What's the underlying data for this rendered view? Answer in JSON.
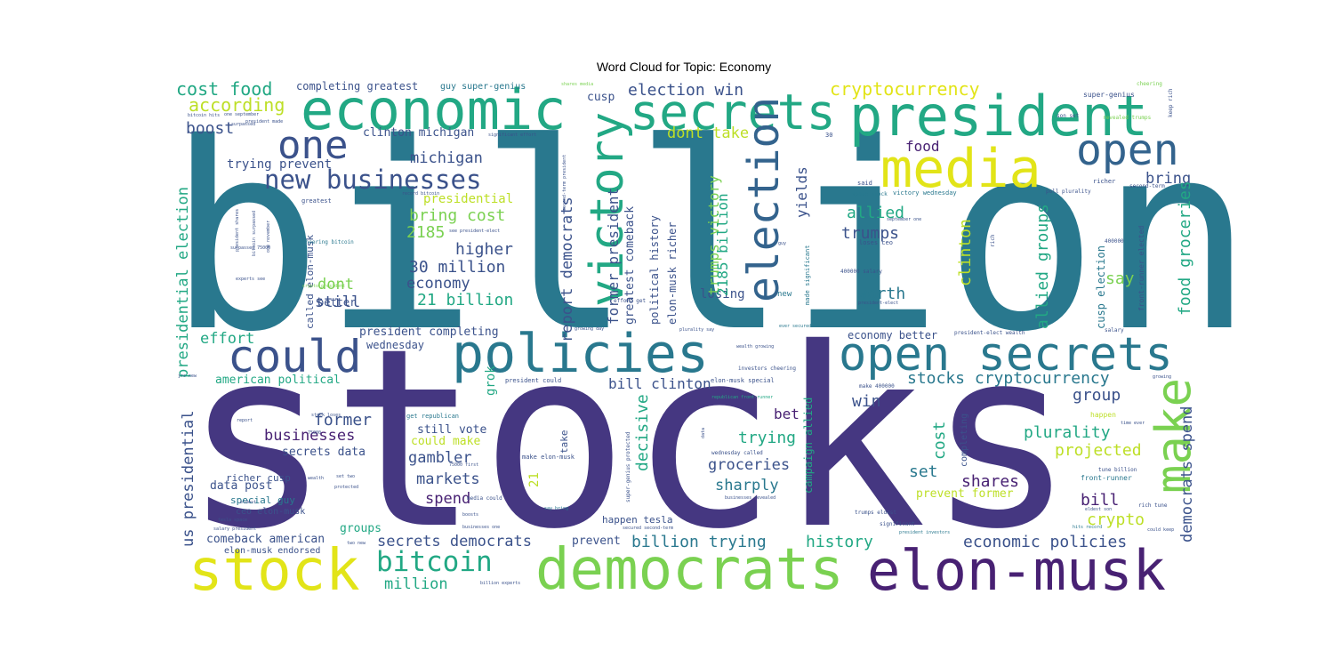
{
  "chart_data": {
    "type": "wordcloud",
    "title": "Word Cloud for Topic: Economy",
    "colors": {
      "purple": "#453781",
      "darkpurple": "#482173",
      "teal": "#29788E",
      "blue": "#33638D",
      "navy": "#3B528B",
      "green": "#22A884",
      "lightgreen": "#7AD151",
      "lime": "#BDDF26",
      "yellow": "#E2E418"
    },
    "words": [
      {
        "text": "billion",
        "weight": 300,
        "color": "teal"
      },
      {
        "text": "stocks",
        "weight": 280,
        "color": "purple"
      },
      {
        "text": "economic",
        "weight": 60,
        "color": "green"
      },
      {
        "text": "secrets",
        "weight": 55,
        "color": "green"
      },
      {
        "text": "president",
        "weight": 62,
        "color": "green"
      },
      {
        "text": "media",
        "weight": 58,
        "color": "yellow"
      },
      {
        "text": "open",
        "weight": 48,
        "color": "blue"
      },
      {
        "text": "one",
        "weight": 45,
        "color": "navy"
      },
      {
        "text": "victory",
        "weight": 50,
        "color": "green"
      },
      {
        "text": "election",
        "weight": 48,
        "color": "blue"
      },
      {
        "text": "policies",
        "weight": 58,
        "color": "teal"
      },
      {
        "text": "could",
        "weight": 50,
        "color": "navy"
      },
      {
        "text": "open secrets",
        "weight": 52,
        "color": "teal"
      },
      {
        "text": "make",
        "weight": 52,
        "color": "lightgreen"
      },
      {
        "text": "stock",
        "weight": 62,
        "color": "yellow"
      },
      {
        "text": "democrats",
        "weight": 62,
        "color": "lightgreen"
      },
      {
        "text": "elon-musk",
        "weight": 60,
        "color": "darkpurple"
      },
      {
        "text": "new businesses",
        "weight": 30,
        "color": "navy"
      },
      {
        "text": "bitcoin",
        "weight": 30,
        "color": "green"
      },
      {
        "text": "cost food",
        "weight": 20,
        "color": "green"
      },
      {
        "text": "according",
        "weight": 20,
        "color": "lime"
      },
      {
        "text": "boost",
        "weight": 18,
        "color": "navy"
      },
      {
        "text": "cryptocurrency",
        "weight": 20,
        "color": "yellow"
      },
      {
        "text": "election win",
        "weight": 18,
        "color": "navy"
      },
      {
        "text": "completing greatest",
        "weight": 12,
        "color": "navy"
      },
      {
        "text": "guy super-genius",
        "weight": 10,
        "color": "teal"
      },
      {
        "text": "clinton michigan",
        "weight": 13,
        "color": "navy"
      },
      {
        "text": "dont take",
        "weight": 17,
        "color": "lime"
      },
      {
        "text": "food",
        "weight": 16,
        "color": "darkpurple"
      },
      {
        "text": "yields",
        "weight": 16,
        "color": "navy"
      },
      {
        "text": "michigan",
        "weight": 17,
        "color": "navy"
      },
      {
        "text": "bring",
        "weight": 17,
        "color": "navy"
      },
      {
        "text": "allied",
        "weight": 18,
        "color": "green"
      },
      {
        "text": "trumps",
        "weight": 18,
        "color": "navy"
      },
      {
        "text": "trying prevent",
        "weight": 14,
        "color": "navy"
      },
      {
        "text": "presidential",
        "weight": 14,
        "color": "lime"
      },
      {
        "text": "bring cost",
        "weight": 18,
        "color": "lightgreen"
      },
      {
        "text": "2185",
        "weight": 18,
        "color": "lightgreen"
      },
      {
        "text": "higher",
        "weight": 18,
        "color": "navy"
      },
      {
        "text": "30 million",
        "weight": 18,
        "color": "navy"
      },
      {
        "text": "economy",
        "weight": 17,
        "color": "navy"
      },
      {
        "text": "21 billion",
        "weight": 18,
        "color": "green"
      },
      {
        "text": "worth",
        "weight": 18,
        "color": "teal"
      },
      {
        "text": "say",
        "weight": 18,
        "color": "lightgreen"
      },
      {
        "text": "still",
        "weight": 17,
        "color": "navy"
      },
      {
        "text": "dont",
        "weight": 17,
        "color": "lightgreen"
      },
      {
        "text": "effort",
        "weight": 17,
        "color": "green"
      },
      {
        "text": "better",
        "weight": 12,
        "color": "navy"
      },
      {
        "text": "losing",
        "weight": 14,
        "color": "navy"
      },
      {
        "text": "president completing",
        "weight": 13,
        "color": "navy"
      },
      {
        "text": "wednesday",
        "weight": 12,
        "color": "navy"
      },
      {
        "text": "economy better",
        "weight": 12,
        "color": "navy"
      },
      {
        "text": "american political",
        "weight": 13,
        "color": "green"
      },
      {
        "text": "bill clinton",
        "weight": 16,
        "color": "navy"
      },
      {
        "text": "stocks cryptocurrency",
        "weight": 18,
        "color": "teal"
      },
      {
        "text": "group",
        "weight": 18,
        "color": "navy"
      },
      {
        "text": "win",
        "weight": 18,
        "color": "navy"
      },
      {
        "text": "bet",
        "weight": 16,
        "color": "darkpurple"
      },
      {
        "text": "former",
        "weight": 18,
        "color": "navy"
      },
      {
        "text": "businesses",
        "weight": 17,
        "color": "darkpurple"
      },
      {
        "text": "secrets data",
        "weight": 13,
        "color": "navy"
      },
      {
        "text": "still vote",
        "weight": 13,
        "color": "navy"
      },
      {
        "text": "could make",
        "weight": 13,
        "color": "lime"
      },
      {
        "text": "gambler",
        "weight": 17,
        "color": "navy"
      },
      {
        "text": "markets",
        "weight": 17,
        "color": "navy"
      },
      {
        "text": "spend",
        "weight": 17,
        "color": "darkpurple"
      },
      {
        "text": "trying",
        "weight": 18,
        "color": "green"
      },
      {
        "text": "groceries",
        "weight": 17,
        "color": "navy"
      },
      {
        "text": "sharply",
        "weight": 17,
        "color": "teal"
      },
      {
        "text": "plurality",
        "weight": 18,
        "color": "green"
      },
      {
        "text": "projected",
        "weight": 18,
        "color": "lime"
      },
      {
        "text": "set",
        "weight": 18,
        "color": "teal"
      },
      {
        "text": "shares",
        "weight": 18,
        "color": "darkpurple"
      },
      {
        "text": "prevent former",
        "weight": 13,
        "color": "lime"
      },
      {
        "text": "bill",
        "weight": 18,
        "color": "darkpurple"
      },
      {
        "text": "crypto",
        "weight": 18,
        "color": "lime"
      },
      {
        "text": "data post",
        "weight": 13,
        "color": "navy"
      },
      {
        "text": "special guy",
        "weight": 11,
        "color": "teal"
      },
      {
        "text": "richer cusp",
        "weight": 11,
        "color": "navy"
      },
      {
        "text": "ceo elon-musk",
        "weight": 10,
        "color": "navy"
      },
      {
        "text": "groups",
        "weight": 13,
        "color": "green"
      },
      {
        "text": "comeback american",
        "weight": 13,
        "color": "navy"
      },
      {
        "text": "elon-musk endorsed",
        "weight": 10,
        "color": "navy"
      },
      {
        "text": "secrets democrats",
        "weight": 17,
        "color": "navy"
      },
      {
        "text": "prevent",
        "weight": 13,
        "color": "navy"
      },
      {
        "text": "billion trying",
        "weight": 18,
        "color": "teal"
      },
      {
        "text": "history",
        "weight": 18,
        "color": "green"
      },
      {
        "text": "economic policies",
        "weight": 18,
        "color": "navy"
      },
      {
        "text": "million",
        "weight": 17,
        "color": "green"
      },
      {
        "text": "happen tesla",
        "weight": 11,
        "color": "navy"
      },
      {
        "text": "presidential election",
        "weight": 17,
        "color": "green"
      },
      {
        "text": "us presidential",
        "weight": 17,
        "color": "navy"
      },
      {
        "text": "report democrats",
        "weight": 17,
        "color": "navy"
      },
      {
        "text": "former president",
        "weight": 16,
        "color": "navy"
      },
      {
        "text": "greatest comeback",
        "weight": 13,
        "color": "navy"
      },
      {
        "text": "political history",
        "weight": 12,
        "color": "navy"
      },
      {
        "text": "elon-musk richer",
        "weight": 12,
        "color": "navy"
      },
      {
        "text": "trumps victory",
        "weight": 16,
        "color": "lightgreen"
      },
      {
        "text": "2185 billion",
        "weight": 16,
        "color": "green"
      },
      {
        "text": "allied groups",
        "weight": 18,
        "color": "green"
      },
      {
        "text": "clinton",
        "weight": 18,
        "color": "lime"
      },
      {
        "text": "cusp election",
        "weight": 12,
        "color": "teal"
      },
      {
        "text": "front-runner elected",
        "weight": 8,
        "color": "navy"
      },
      {
        "text": "food groceries",
        "weight": 18,
        "color": "green"
      },
      {
        "text": "democrats spend",
        "weight": 17,
        "color": "navy"
      },
      {
        "text": "cost",
        "weight": 18,
        "color": "green"
      },
      {
        "text": "decisive",
        "weight": 18,
        "color": "green"
      },
      {
        "text": "grok",
        "weight": 14,
        "color": "green"
      },
      {
        "text": "21",
        "weight": 14,
        "color": "lime"
      },
      {
        "text": "campaign allied",
        "weight": 12,
        "color": "green"
      },
      {
        "text": "completing",
        "weight": 10,
        "color": "navy"
      },
      {
        "text": "take",
        "weight": 11,
        "color": "navy"
      },
      {
        "text": "cusp",
        "weight": 13,
        "color": "navy"
      },
      {
        "text": "called elon-musk",
        "weight": 11,
        "color": "navy"
      },
      {
        "text": "super-genius",
        "weight": 8,
        "color": "navy"
      },
      {
        "text": "cheering",
        "weight": 6,
        "color": "lightgreen"
      },
      {
        "text": "keep rich",
        "weight": 6,
        "color": "navy"
      },
      {
        "text": "son set",
        "weight": 6,
        "color": "navy"
      },
      {
        "text": "revealed trumps",
        "weight": 6,
        "color": "lightgreen"
      },
      {
        "text": "richer",
        "weight": 7,
        "color": "navy"
      },
      {
        "text": "second-term",
        "weight": 6,
        "color": "navy"
      },
      {
        "text": "said",
        "weight": 7,
        "color": "navy"
      },
      {
        "text": "space stock",
        "weight": 6,
        "color": "teal"
      },
      {
        "text": "victory wednesday",
        "weight": 7,
        "color": "teal"
      },
      {
        "text": "poll plurality",
        "weight": 6,
        "color": "navy"
      },
      {
        "text": "september one",
        "weight": 5,
        "color": "navy"
      },
      {
        "text": "400000",
        "weight": 6,
        "color": "navy"
      },
      {
        "text": "rich",
        "weight": 6,
        "color": "navy"
      },
      {
        "text": "salary",
        "weight": 6,
        "color": "navy"
      },
      {
        "text": "loses ceo",
        "weight": 7,
        "color": "navy"
      },
      {
        "text": "400000 salary",
        "weight": 6,
        "color": "navy"
      },
      {
        "text": "president-elect",
        "weight": 5,
        "color": "navy"
      },
      {
        "text": "president-elect wealth",
        "weight": 6,
        "color": "navy"
      },
      {
        "text": "made significant",
        "weight": 7,
        "color": "teal"
      },
      {
        "text": "ever secured",
        "weight": 5,
        "color": "teal"
      },
      {
        "text": "new",
        "weight": 9,
        "color": "teal"
      },
      {
        "text": "guy",
        "weight": 5,
        "color": "navy"
      },
      {
        "text": "make 400000",
        "weight": 6,
        "color": "navy"
      },
      {
        "text": "investors cheering",
        "weight": 6,
        "color": "navy"
      },
      {
        "text": "growing",
        "weight": 5,
        "color": "navy"
      },
      {
        "text": "happen",
        "weight": 8,
        "color": "lime"
      },
      {
        "text": "time ever",
        "weight": 5,
        "color": "navy"
      },
      {
        "text": "front-runner",
        "weight": 8,
        "color": "teal"
      },
      {
        "text": "tune billion",
        "weight": 6,
        "color": "navy"
      },
      {
        "text": "eldest son",
        "weight": 5,
        "color": "navy"
      },
      {
        "text": "rich tune",
        "weight": 6,
        "color": "navy"
      },
      {
        "text": "hits record",
        "weight": 5,
        "color": "teal"
      },
      {
        "text": "could keep",
        "weight": 5,
        "color": "navy"
      },
      {
        "text": "trumps eldest",
        "weight": 6,
        "color": "navy"
      },
      {
        "text": "significant",
        "weight": 6,
        "color": "navy"
      },
      {
        "text": "president investors",
        "weight": 5,
        "color": "teal"
      },
      {
        "text": "businesses revealed",
        "weight": 5,
        "color": "navy"
      },
      {
        "text": "republican front-runner",
        "weight": 5,
        "color": "green"
      },
      {
        "text": "wednesday called",
        "weight": 6,
        "color": "navy"
      },
      {
        "text": "super-genius protected",
        "weight": 6,
        "color": "navy"
      },
      {
        "text": "secured second-term",
        "weight": 5,
        "color": "navy"
      },
      {
        "text": "data",
        "weight": 5,
        "color": "navy"
      },
      {
        "text": "president could",
        "weight": 7,
        "color": "navy"
      },
      {
        "text": "elon-musk special",
        "weight": 7,
        "color": "navy"
      },
      {
        "text": "get republican",
        "weight": 7,
        "color": "teal"
      },
      {
        "text": "make elon-musk",
        "weight": 7,
        "color": "navy"
      },
      {
        "text": "media could",
        "weight": 6,
        "color": "navy"
      },
      {
        "text": "75000 first",
        "weight": 5,
        "color": "navy"
      },
      {
        "text": "say bring",
        "weight": 5,
        "color": "teal"
      },
      {
        "text": "boosts",
        "weight": 5,
        "color": "navy"
      },
      {
        "text": "businesses one",
        "weight": 5,
        "color": "navy"
      },
      {
        "text": "billion experts",
        "weight": 5,
        "color": "navy"
      },
      {
        "text": "two new",
        "weight": 5,
        "color": "navy"
      },
      {
        "text": "tesla space",
        "weight": 5,
        "color": "navy"
      },
      {
        "text": "salary president",
        "weight": 5,
        "color": "navy"
      },
      {
        "text": "eldest",
        "weight": 5,
        "color": "navy"
      },
      {
        "text": "protected",
        "weight": 5,
        "color": "navy"
      },
      {
        "text": "set two",
        "weight": 5,
        "color": "navy"
      },
      {
        "text": "wealth",
        "weight": 5,
        "color": "navy"
      },
      {
        "text": "report",
        "weight": 5,
        "color": "navy"
      },
      {
        "text": "75000",
        "weight": 5,
        "color": "navy"
      },
      {
        "text": "stock loses",
        "weight": 5,
        "color": "navy"
      },
      {
        "text": "jrs new",
        "weight": 5,
        "color": "navy"
      },
      {
        "text": "experts see",
        "weight": 5,
        "color": "navy"
      },
      {
        "text": "surpassed 75000",
        "weight": 5,
        "color": "navy"
      },
      {
        "text": "crypto president",
        "weight": 5,
        "color": "lightgreen"
      },
      {
        "text": "cheering bitcoin",
        "weight": 6,
        "color": "teal"
      },
      {
        "text": "greatest",
        "weight": 7,
        "color": "navy"
      },
      {
        "text": "see president-elect",
        "weight": 5,
        "color": "navy"
      },
      {
        "text": "second-term president",
        "weight": 5,
        "color": "navy"
      },
      {
        "text": "record bitcoin",
        "weight": 5,
        "color": "navy"
      },
      {
        "text": "30",
        "weight": 7,
        "color": "navy"
      },
      {
        "text": "significant effort",
        "weight": 5,
        "color": "navy"
      },
      {
        "text": "one september",
        "weight": 5,
        "color": "navy"
      },
      {
        "text": "surpassed",
        "weight": 5,
        "color": "navy"
      },
      {
        "text": "president made",
        "weight": 5,
        "color": "navy"
      },
      {
        "text": "bitcoin hits",
        "weight": 5,
        "color": "navy"
      },
      {
        "text": "shares media",
        "weight": 5,
        "color": "lightgreen"
      },
      {
        "text": "wealth growing",
        "weight": 5,
        "color": "navy"
      },
      {
        "text": "plurality say",
        "weight": 5,
        "color": "navy"
      },
      {
        "text": "effort get",
        "weight": 6,
        "color": "navy"
      },
      {
        "text": "growing day",
        "weight": 5,
        "color": "navy"
      },
      {
        "text": "president shares",
        "weight": 5,
        "color": "navy"
      },
      {
        "text": "bitcoin surpassed",
        "weight": 5,
        "color": "navy"
      },
      {
        "text": "one november",
        "weight": 5,
        "color": "navy"
      }
    ]
  }
}
